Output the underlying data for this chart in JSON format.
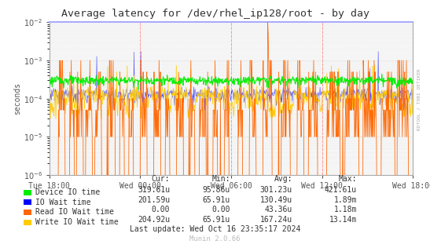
{
  "title": "Average latency for /dev/rhel_ip128/root - by day",
  "ylabel": "seconds",
  "xlabel_ticks": [
    "Tue 18:00",
    "Wed 00:00",
    "Wed 06:00",
    "Wed 12:00",
    "Wed 18:00"
  ],
  "ylim": [
    1e-06,
    0.01
  ],
  "series_colors": {
    "device_io": "#00EE00",
    "io_wait": "#0000FF",
    "read_io": "#FF6600",
    "write_io": "#FFCC00"
  },
  "legend_items": [
    {
      "color": "#00EE00",
      "label": "Device IO time",
      "cur": "319.61u",
      "min": "95.86u",
      "avg": "301.23u",
      "max": "421.61u"
    },
    {
      "color": "#0000FF",
      "label": "IO Wait time",
      "cur": "201.59u",
      "min": "65.91u",
      "avg": "130.49u",
      "max": "1.89m"
    },
    {
      "color": "#FF6600",
      "label": "Read IO Wait time",
      "cur": "0.00",
      "min": "0.00",
      "avg": "43.36u",
      "max": "1.18m"
    },
    {
      "color": "#FFCC00",
      "label": "Write IO Wait time",
      "cur": "204.92u",
      "min": "65.91u",
      "avg": "167.24u",
      "max": "13.14m"
    }
  ],
  "right_label": "RDTOOL / TOBI OETIKER",
  "footer": "Munin 2.0.66",
  "last_update": "Last update: Wed Oct 16 23:35:17 2024",
  "plot_bg": "#F5F5F5",
  "outer_bg": "#FFFFFF",
  "grid_major_color": "#CCCCCC",
  "grid_minor_color": "#E8E8E8",
  "vline_color": "#FF8888",
  "hline_color": "#FFAAAA",
  "border_color": "#AAAAFF"
}
